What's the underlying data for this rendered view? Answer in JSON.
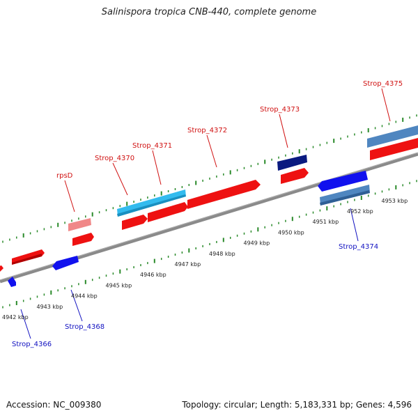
{
  "title": "Salinispora tropica CNB-440, complete genome",
  "footer": {
    "accession": "Accession: NC_009380",
    "stats": "Topology: circular; Length: 5,183,331 bp; Genes: 4,596"
  },
  "colors": {
    "backbone": "#8a8a8a",
    "tick": "#2a8a2a",
    "forward_label": "#d01010",
    "reverse_label": "#1010c0",
    "kbp_label": "#222222"
  },
  "ruler_labels": [
    "4942 kbp",
    "4943 kbp",
    "4944 kbp",
    "4945 kbp",
    "4946 kbp",
    "4947 kbp",
    "4948 kbp",
    "4949 kbp",
    "4950 kbp",
    "4951 kbp",
    "4952 kbp",
    "4953 kbp"
  ],
  "gene_labels": {
    "rpsD": "rpsD",
    "strop_4370": "Strop_4370",
    "strop_4371": "Strop_4371",
    "strop_4372": "Strop_4372",
    "strop_4373": "Strop_4373",
    "strop_4375": "Strop_4375",
    "strop_4366": "Strop_4366",
    "strop_4368": "Strop_4368",
    "strop_4374": "Strop_4374"
  }
}
